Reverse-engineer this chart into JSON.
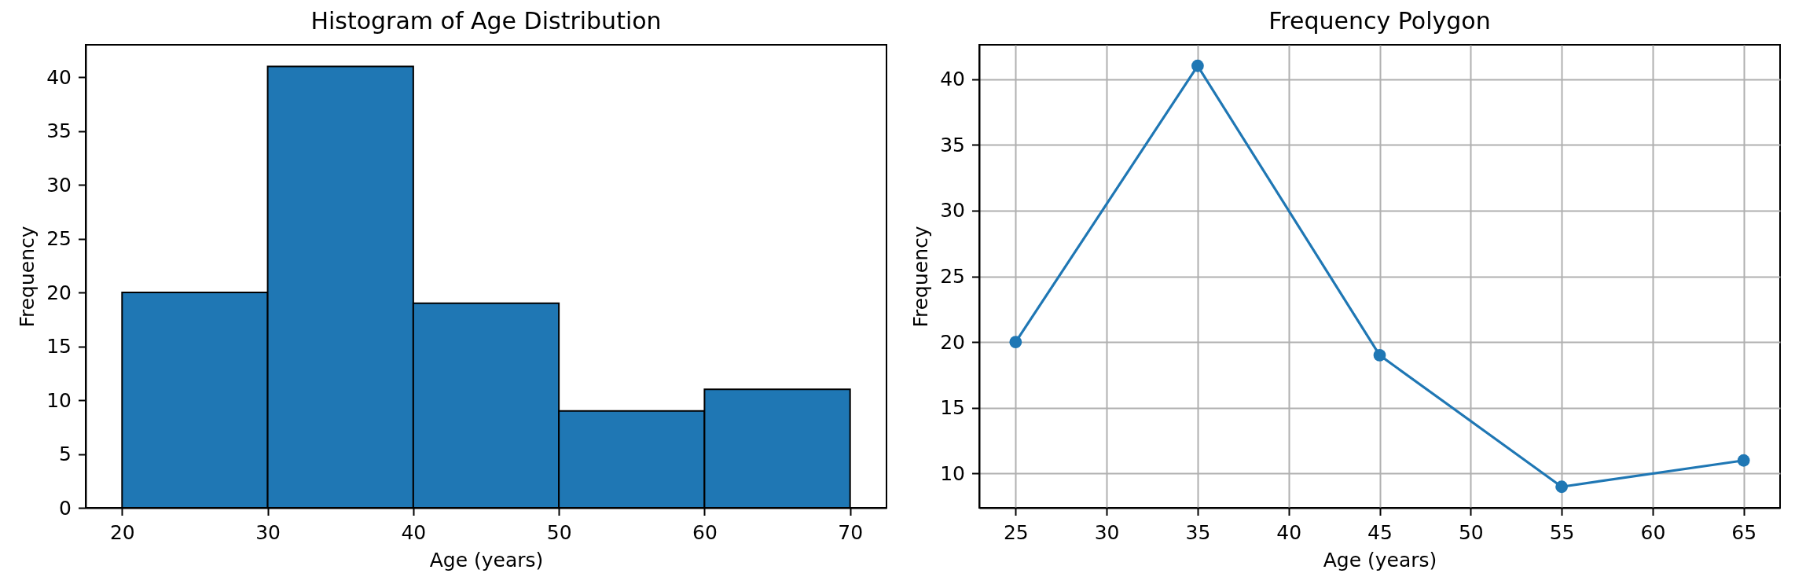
{
  "chart_data": [
    {
      "type": "histogram",
      "title": "Histogram of Age Distribution",
      "xlabel": "Age (years)",
      "ylabel": "Frequency",
      "bins": [
        20,
        30,
        40,
        50,
        60,
        70
      ],
      "values": [
        20,
        41,
        19,
        9,
        11
      ],
      "color": "#1f77b4",
      "xlim": [
        17.5,
        72.5
      ],
      "ylim": [
        0,
        43
      ],
      "xticks": [
        20,
        30,
        40,
        50,
        60,
        70
      ],
      "yticks": [
        0,
        5,
        10,
        15,
        20,
        25,
        30,
        35,
        40
      ]
    },
    {
      "type": "line",
      "title": "Frequency Polygon",
      "xlabel": "Age (years)",
      "ylabel": "Frequency",
      "x": [
        25,
        35,
        45,
        55,
        65
      ],
      "values": [
        20,
        41,
        19,
        9,
        11
      ],
      "color": "#1f77b4",
      "marker": "circle",
      "xlim": [
        23,
        67
      ],
      "ylim": [
        7.4,
        42.6
      ],
      "xticks": [
        25,
        30,
        35,
        40,
        45,
        50,
        55,
        60,
        65
      ],
      "yticks": [
        10,
        15,
        20,
        25,
        30,
        35,
        40
      ],
      "grid": true
    }
  ]
}
